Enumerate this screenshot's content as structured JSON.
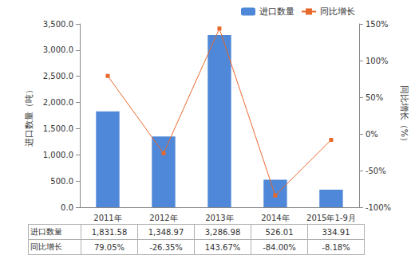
{
  "chart_data": {
    "type": "bar",
    "categories": [
      "2011年",
      "2012年",
      "2013年",
      "2014年",
      "2015年1-9月"
    ],
    "series": [
      {
        "name": "进口数量",
        "type": "bar",
        "color": "#4f88d8",
        "values": [
          1831.58,
          1348.97,
          3286.98,
          526.01,
          334.91
        ],
        "value_labels": [
          "1,831.58",
          "1,348.97",
          "3,286.98",
          "526.01",
          "334.91"
        ]
      },
      {
        "name": "同比增长",
        "type": "line",
        "axis": "y2",
        "color": "#e8692c",
        "marker": "square",
        "values": [
          79.05,
          -26.35,
          143.67,
          -84.0,
          -8.18
        ],
        "value_labels": [
          "79.05%",
          "-26.35%",
          "143.67%",
          "-84.00%",
          "-8.18%"
        ]
      }
    ],
    "y_label": "进口数量（吨）",
    "y2_label": "同比增长（%）",
    "ylim": [
      0,
      3500
    ],
    "yticks": [
      {
        "value": 0,
        "label": "0.0"
      },
      {
        "value": 500,
        "label": "500.0"
      },
      {
        "value": 1000,
        "label": "1,000.0"
      },
      {
        "value": 1500,
        "label": "1,500.0"
      },
      {
        "value": 2000,
        "label": "2,000.0"
      },
      {
        "value": 2500,
        "label": "2,500.0"
      },
      {
        "value": 3000,
        "label": "3,000.0"
      },
      {
        "value": 3500,
        "label": "3,500.0"
      }
    ],
    "y2lim": [
      -100,
      150
    ],
    "y2ticks": [
      {
        "value": -100,
        "label": "-100%"
      },
      {
        "value": -50,
        "label": "-50%"
      },
      {
        "value": 0,
        "label": "0%"
      },
      {
        "value": 50,
        "label": "50%"
      },
      {
        "value": 100,
        "label": "100%"
      },
      {
        "value": 150,
        "label": "150%"
      }
    ],
    "legend": "top",
    "grid": false
  }
}
